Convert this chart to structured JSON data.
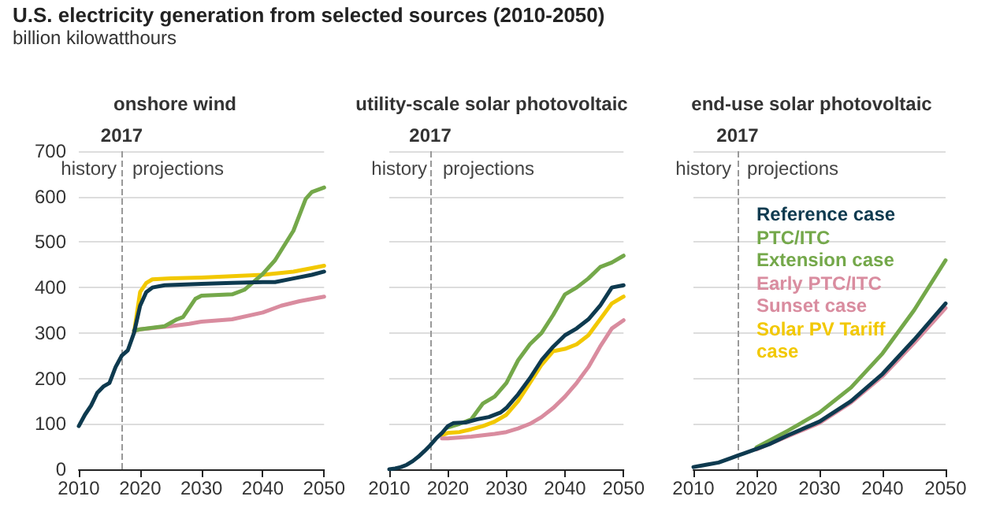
{
  "chart_data": [
    {
      "type": "line",
      "title": "onshore wind",
      "annotations": [
        "U.S. electricity generation from selected sources (2010-2050)",
        "billion kilowatthours",
        "history",
        "projections"
      ],
      "xlim": [
        2010,
        2050
      ],
      "xticks": [
        2010,
        2020,
        2030,
        2040,
        2050
      ],
      "ylim": [
        0,
        700
      ],
      "yticks": [
        0,
        100,
        200,
        300,
        400,
        500,
        600,
        700
      ],
      "grid": "y",
      "legend": false,
      "marker": "none",
      "line_style": "solid",
      "ref_lines": [
        {
          "axis": "x",
          "value": 2017,
          "label": "2017",
          "color": "#999999",
          "line_style": "dashed"
        }
      ],
      "series": [
        {
          "color": "#0e3a4f",
          "x": [
            2010,
            2011,
            2012,
            2013,
            2014,
            2015,
            2016,
            2017,
            2018,
            2019,
            2020,
            2021,
            2022,
            2024,
            2030,
            2035,
            2040,
            2042,
            2045,
            2048,
            2050
          ],
          "values": [
            95,
            120,
            140,
            168,
            182,
            190,
            225,
            250,
            262,
            300,
            360,
            390,
            400,
            405,
            408,
            410,
            412,
            412,
            420,
            428,
            435
          ]
        },
        {
          "color": "#74a84a",
          "x": [
            2019,
            2020,
            2024,
            2026,
            2027,
            2029,
            2030,
            2035,
            2037,
            2040,
            2042,
            2045,
            2047,
            2048,
            2050
          ],
          "values": [
            305,
            308,
            315,
            330,
            335,
            375,
            382,
            385,
            395,
            430,
            460,
            525,
            595,
            610,
            620
          ]
        },
        {
          "color": "#d98c9f",
          "x": [
            2019,
            2020,
            2025,
            2028,
            2030,
            2035,
            2040,
            2043,
            2046,
            2050
          ],
          "values": [
            305,
            308,
            315,
            320,
            325,
            330,
            345,
            360,
            370,
            380
          ]
        },
        {
          "color": "#f2c800",
          "x": [
            2019,
            2020,
            2021,
            2022,
            2025,
            2030,
            2035,
            2040,
            2045,
            2050
          ],
          "values": [
            300,
            390,
            410,
            418,
            420,
            422,
            425,
            428,
            435,
            448
          ]
        }
      ]
    },
    {
      "type": "line",
      "title": "utility-scale solar photovoltaic",
      "annotations": [
        "history",
        "projections"
      ],
      "xlim": [
        2010,
        2050
      ],
      "xticks": [
        2010,
        2020,
        2030,
        2040,
        2050
      ],
      "ylim": [
        0,
        700
      ],
      "yticks": [
        0,
        100,
        200,
        300,
        400,
        500,
        600,
        700
      ],
      "tick_labels": "x",
      "grid": "y",
      "legend": false,
      "marker": "none",
      "line_style": "solid",
      "ref_lines": [
        {
          "axis": "x",
          "value": 2017,
          "label": "2017",
          "color": "#999999",
          "line_style": "dashed"
        }
      ],
      "series": [
        {
          "color": "#0e3a4f",
          "x": [
            2010,
            2011,
            2012,
            2013,
            2014,
            2015,
            2016,
            2017,
            2018,
            2019,
            2020,
            2021,
            2023,
            2025,
            2027,
            2029,
            2030,
            2032,
            2034,
            2036,
            2038,
            2040,
            2042,
            2044,
            2046,
            2048,
            2050
          ],
          "values": [
            0,
            2,
            5,
            10,
            18,
            28,
            40,
            53,
            68,
            80,
            95,
            102,
            103,
            110,
            115,
            125,
            135,
            165,
            200,
            240,
            270,
            295,
            310,
            330,
            360,
            400,
            405
          ]
        },
        {
          "color": "#74a84a",
          "x": [
            2020,
            2022,
            2024,
            2026,
            2028,
            2030,
            2032,
            2034,
            2036,
            2038,
            2040,
            2042,
            2044,
            2046,
            2048,
            2050
          ],
          "values": [
            92,
            100,
            110,
            145,
            160,
            190,
            240,
            275,
            300,
            340,
            385,
            400,
            420,
            445,
            455,
            470
          ]
        },
        {
          "color": "#d98c9f",
          "x": [
            2019,
            2020,
            2024,
            2028,
            2030,
            2032,
            2034,
            2036,
            2038,
            2040,
            2042,
            2044,
            2046,
            2048,
            2050
          ],
          "values": [
            68,
            68,
            72,
            78,
            82,
            90,
            100,
            115,
            135,
            160,
            190,
            225,
            270,
            310,
            328
          ]
        },
        {
          "color": "#f2c800",
          "x": [
            2019,
            2020,
            2022,
            2024,
            2026,
            2028,
            2030,
            2032,
            2034,
            2036,
            2038,
            2040,
            2042,
            2044,
            2046,
            2048,
            2050
          ],
          "values": [
            75,
            80,
            82,
            88,
            95,
            105,
            120,
            150,
            190,
            230,
            260,
            265,
            275,
            295,
            330,
            365,
            380
          ]
        }
      ]
    },
    {
      "type": "line",
      "title": "end-use solar photovoltaic",
      "annotations": [
        "history",
        "projections"
      ],
      "xlim": [
        2010,
        2050
      ],
      "xticks": [
        2010,
        2020,
        2030,
        2040,
        2050
      ],
      "ylim": [
        0,
        700
      ],
      "yticks": [
        0,
        100,
        200,
        300,
        400,
        500,
        600,
        700
      ],
      "tick_labels": "x",
      "grid": "y",
      "legend": "top left",
      "marker": "none",
      "line_style": "solid",
      "ref_lines": [
        {
          "axis": "x",
          "value": 2017,
          "label": "2017",
          "color": "#999999",
          "line_style": "dashed"
        }
      ],
      "series": [
        {
          "name": "Reference case",
          "color": "#0e3a4f",
          "x": [
            2010,
            2012,
            2014,
            2016,
            2017,
            2018,
            2020,
            2022,
            2025,
            2030,
            2035,
            2040,
            2045,
            2050
          ],
          "values": [
            5,
            10,
            15,
            25,
            30,
            35,
            45,
            55,
            75,
            105,
            150,
            210,
            285,
            365
          ]
        },
        {
          "name": "PTC/ITC Extension case",
          "color": "#74a84a",
          "x": [
            2020,
            2025,
            2030,
            2035,
            2040,
            2045,
            2050
          ],
          "values": [
            48,
            85,
            125,
            180,
            255,
            350,
            460
          ]
        },
        {
          "name": "Early PTC/ITC Sunset case",
          "color": "#d98c9f",
          "x": [
            2020,
            2025,
            2030,
            2035,
            2040,
            2045,
            2050
          ],
          "values": [
            44,
            73,
            102,
            147,
            205,
            278,
            355
          ]
        },
        {
          "name": "Solar PV Tariff case",
          "color": "#f2c800"
        }
      ]
    }
  ]
}
